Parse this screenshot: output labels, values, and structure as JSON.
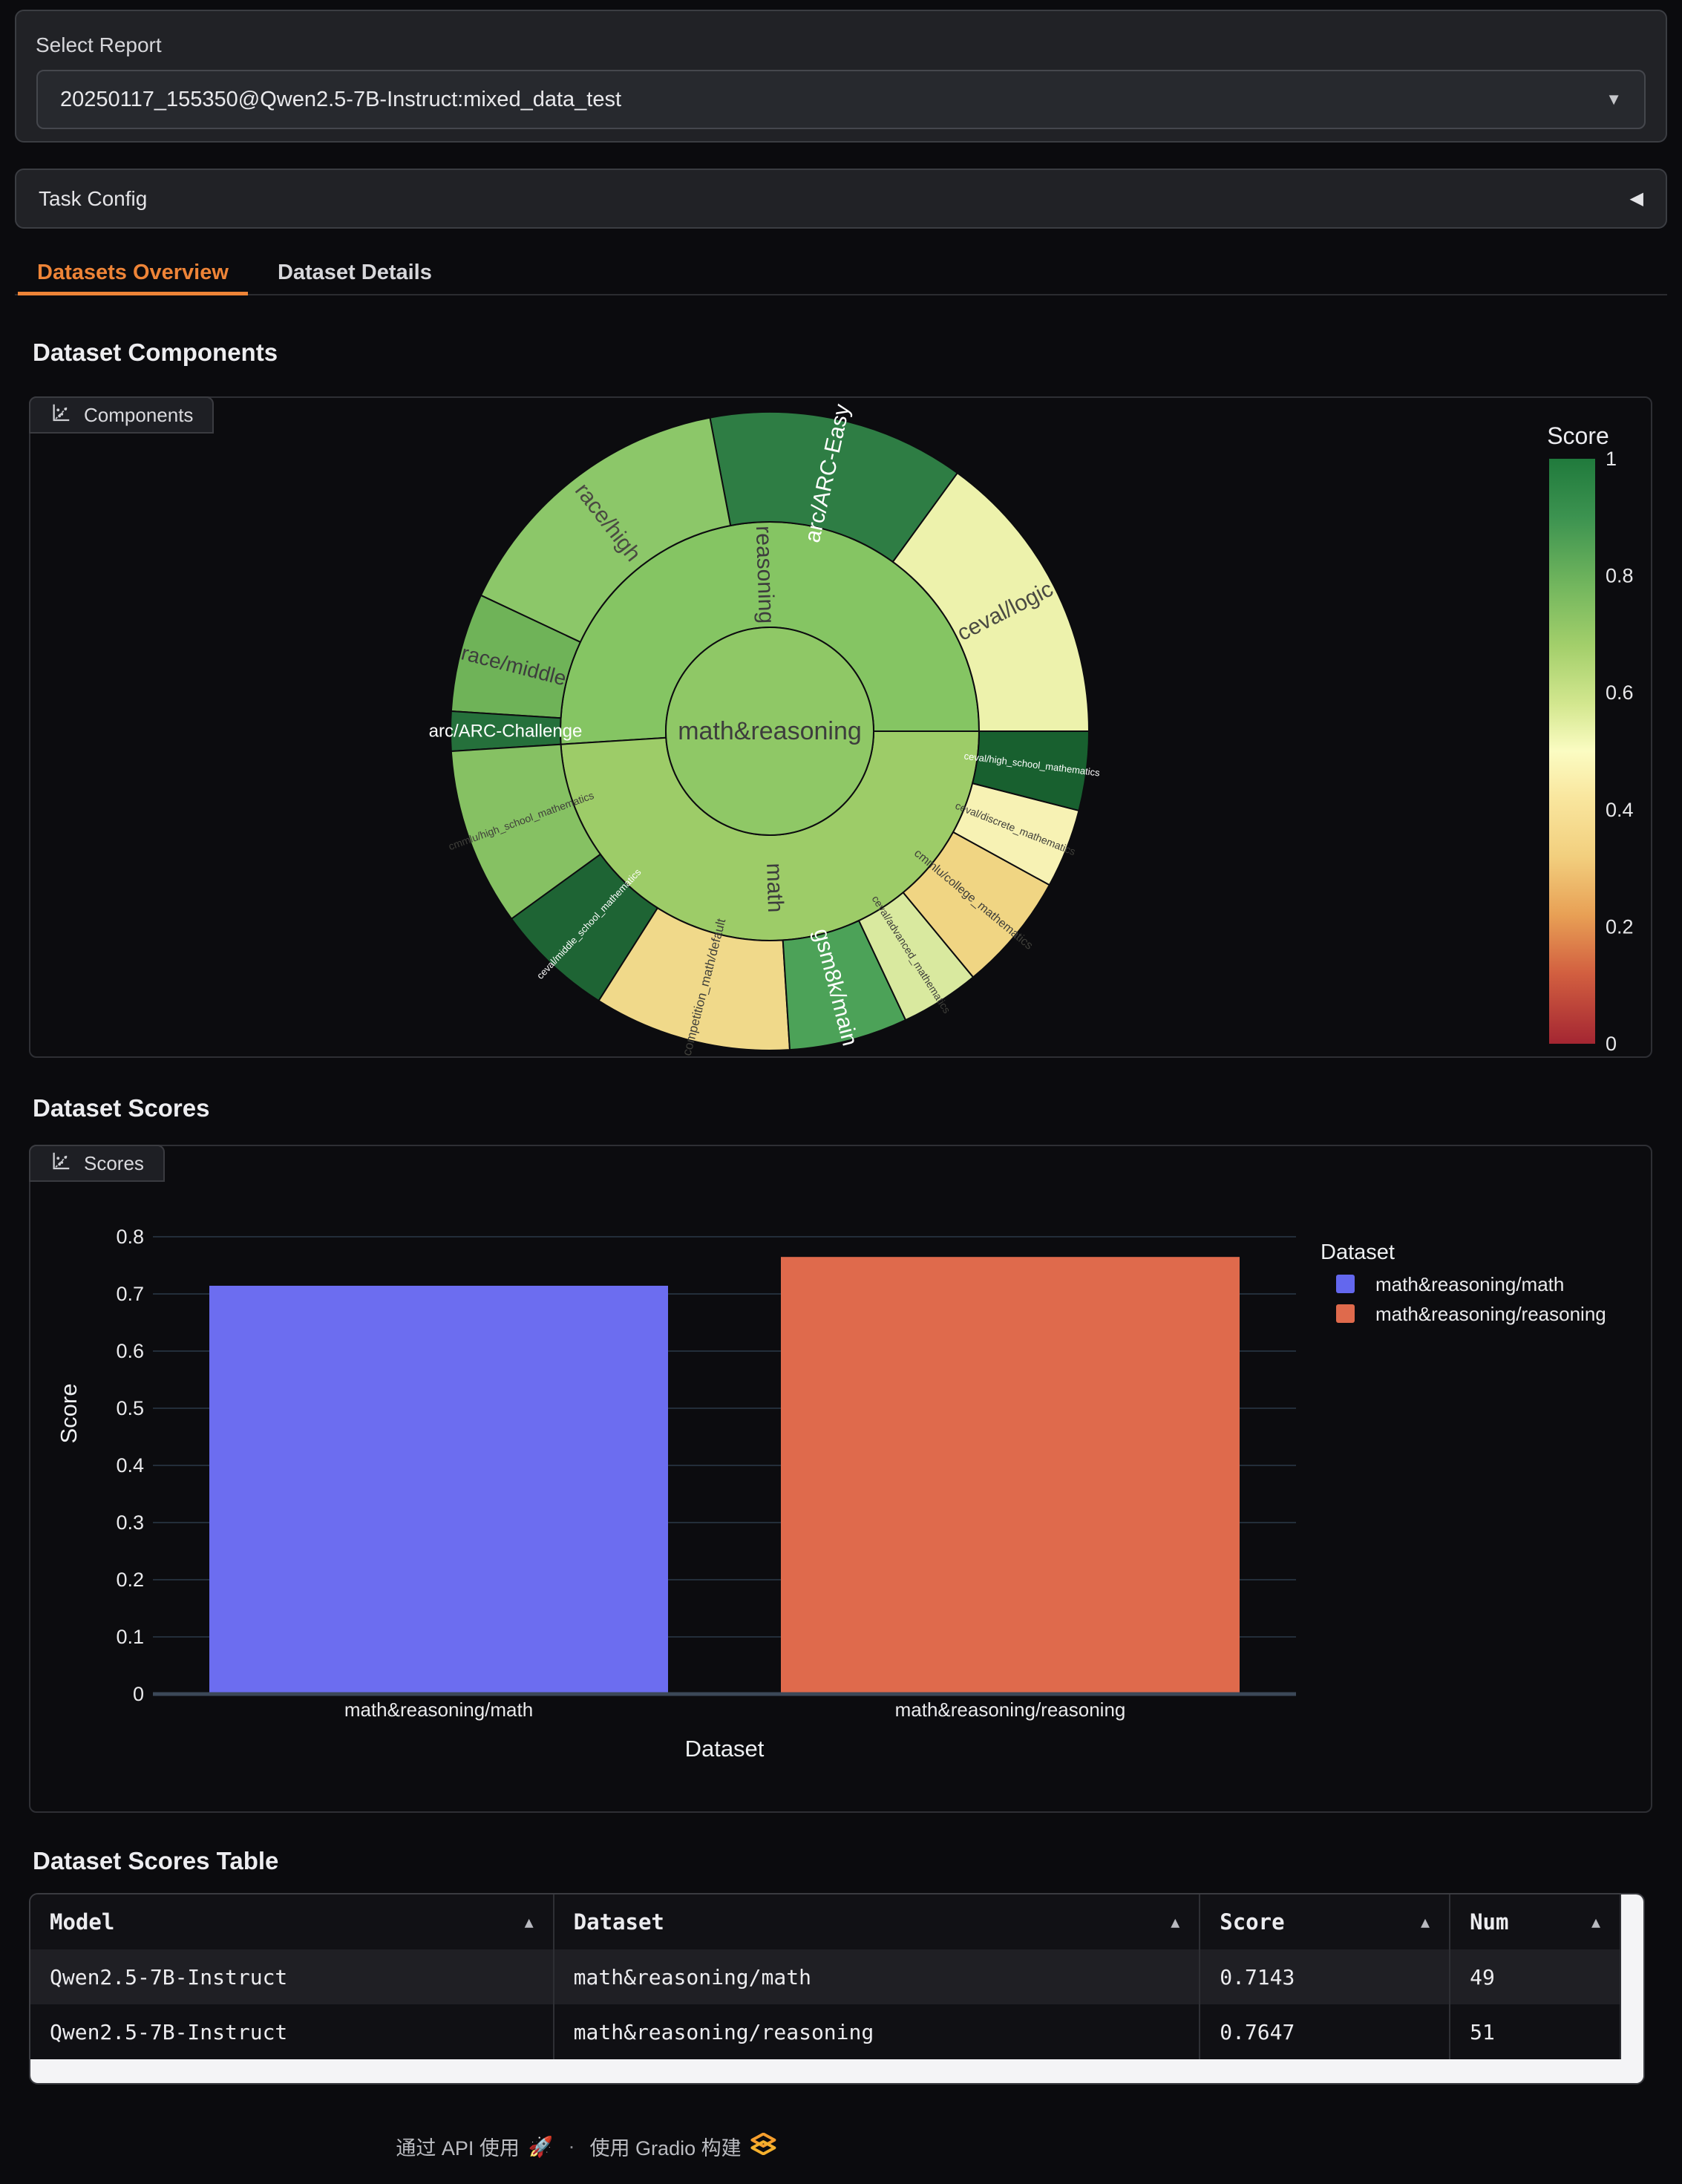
{
  "report_selector": {
    "label": "Select Report",
    "value": "20250117_155350@Qwen2.5-7B-Instruct:mixed_data_test",
    "caret": "▼"
  },
  "task_config": {
    "label": "Task Config",
    "collapse_icon": "◀"
  },
  "tabs": {
    "accent": "#ee8437",
    "items": [
      {
        "label": "Datasets Overview",
        "active": true
      },
      {
        "label": "Dataset Details",
        "active": false
      }
    ]
  },
  "overview": {
    "components_heading": "Dataset Components",
    "components_tab": "Components",
    "scores_heading": "Dataset Scores",
    "scores_tab": "Scores",
    "table_heading": "Dataset Scores Table"
  },
  "chart_data": [
    {
      "type": "sunburst",
      "title": "Dataset Components",
      "center": {
        "label": "math&reasoning",
        "color": "#8FC866",
        "text_color": "#3d3d3d",
        "font_size": 34
      },
      "total": 100,
      "start_angle": 0,
      "direction": "ccw",
      "levels": [
        {
          "label": "reasoning",
          "value": 51,
          "score": 0.7647,
          "color": "#85C563",
          "text_color": "#3d3d3d",
          "font_size": 30,
          "children": [
            {
              "label": "ceval/logic",
              "value": 15,
              "score": 0.53,
              "color": "#EDF2AC",
              "text_color": "#4a4a42",
              "font_size": 30
            },
            {
              "label": "arc/ARC-Easy",
              "value": 13,
              "score": 0.92,
              "color": "#2E7D44",
              "text_color": "#ffffff",
              "font_size": 30
            },
            {
              "label": "race/high",
              "value": 15,
              "score": 0.73,
              "color": "#8CC769",
              "text_color": "#4a4a42",
              "font_size": 30
            },
            {
              "label": "race/middle",
              "value": 6,
              "score": 0.79,
              "color": "#6FB358",
              "text_color": "#3d3d3d",
              "font_size": 28
            },
            {
              "label": "arc/ARC-Challenge",
              "value": 2,
              "score": 0.9,
              "color": "#25703B",
              "text_color": "#ffffff",
              "font_size": 24
            }
          ]
        },
        {
          "label": "math",
          "value": 49,
          "score": 0.7143,
          "color": "#9DCC68",
          "text_color": "#3d3d3d",
          "font_size": 30,
          "children": [
            {
              "label": "cmmlu/high_school_mathematics",
              "value": 9,
              "score": 0.75,
              "color": "#86C163",
              "text_color": "#3f3f3a",
              "font_size": 14
            },
            {
              "label": "ceval/middle_school_mathematics",
              "value": 6,
              "score": 0.95,
              "color": "#1E6434",
              "text_color": "#ffffff",
              "font_size": 13
            },
            {
              "label": "competition_math/default",
              "value": 10,
              "score": 0.45,
              "color": "#F0D98A",
              "text_color": "#3f3f3a",
              "font_size": 17
            },
            {
              "label": "gsm8k/main",
              "value": 6,
              "score": 0.83,
              "color": "#4CA258",
              "text_color": "#ffffff",
              "font_size": 30
            },
            {
              "label": "ceval/advanced_mathematics",
              "value": 4,
              "score": 0.6,
              "color": "#D9E99F",
              "text_color": "#3f3f3a",
              "font_size": 14
            },
            {
              "label": "cmmlu/college_mathematics",
              "value": 6,
              "score": 0.47,
              "color": "#F0D583",
              "text_color": "#3f3f3a",
              "font_size": 16
            },
            {
              "label": "ceval/discrete_mathematics",
              "value": 4,
              "score": 0.55,
              "color": "#F7F2B4",
              "text_color": "#3f3f3a",
              "font_size": 14
            },
            {
              "label": "ceval/high_school_mathematics",
              "value": 4,
              "score": 0.97,
              "color": "#18602F",
              "text_color": "#ffffff",
              "font_size": 13
            }
          ]
        }
      ],
      "colorbar": {
        "title": "Score",
        "tick_labels": [
          "1",
          "0.8",
          "0.6",
          "0.4",
          "0.2",
          "0"
        ],
        "gradient": [
          {
            "offset": 0,
            "color": "#207a3c"
          },
          {
            "offset": 10,
            "color": "#3c9350"
          },
          {
            "offset": 22,
            "color": "#74b75e"
          },
          {
            "offset": 32,
            "color": "#a3cf6b"
          },
          {
            "offset": 42,
            "color": "#d3e78f"
          },
          {
            "offset": 50,
            "color": "#fbfcc2"
          },
          {
            "offset": 58,
            "color": "#f9e69e"
          },
          {
            "offset": 68,
            "color": "#f2cf7e"
          },
          {
            "offset": 78,
            "color": "#e8a055"
          },
          {
            "offset": 88,
            "color": "#d25f40"
          },
          {
            "offset": 100,
            "color": "#a42632"
          }
        ]
      }
    },
    {
      "type": "bar",
      "title": "Dataset Scores",
      "categories": [
        "math&reasoning/math",
        "math&reasoning/reasoning"
      ],
      "values": [
        0.7143,
        0.7647
      ],
      "colors": [
        "#6C6DF0",
        "#DF6A4C"
      ],
      "xlabel": "Dataset",
      "ylabel": "Score",
      "ylim": [
        0,
        0.8
      ],
      "ytick_step": 0.1,
      "grid": true,
      "legend": {
        "title": "Dataset",
        "position": "right",
        "entries": [
          {
            "label": "math&reasoning/math",
            "color": "#6367EE"
          },
          {
            "label": "math&reasoning/reasoning",
            "color": "#DF6A4C"
          }
        ]
      }
    }
  ],
  "table": {
    "sort_icon": "▲",
    "headers": [
      "Model",
      "Dataset",
      "Score",
      "Num"
    ],
    "rows": [
      [
        "Qwen2.5-7B-Instruct",
        "math&reasoning/math",
        "0.7143",
        "49"
      ],
      [
        "Qwen2.5-7B-Instruct",
        "math&reasoning/reasoning",
        "0.7647",
        "51"
      ]
    ]
  },
  "footer": {
    "api_text": "通过 API 使用",
    "rocket": "🚀",
    "separator": "·",
    "built_text": "使用 Gradio 构建"
  }
}
